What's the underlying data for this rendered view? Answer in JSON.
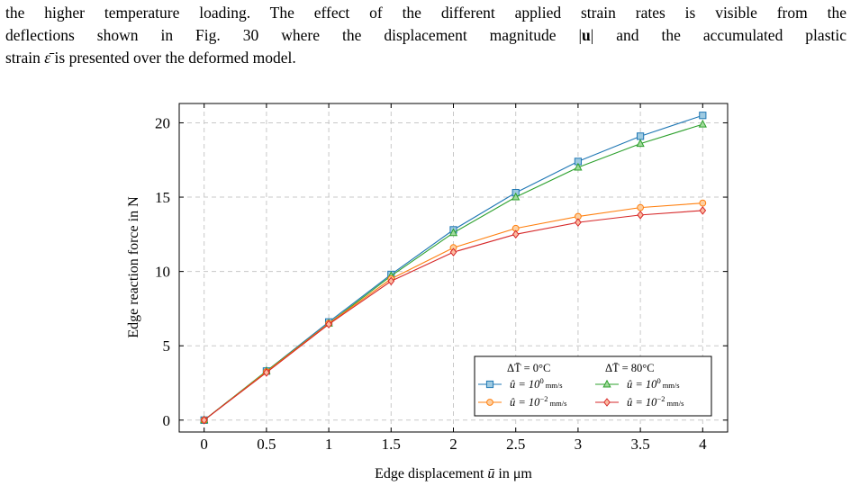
{
  "paragraph": {
    "line1": "the higher temperature loading. The effect of the different applied strain rates is visible from the",
    "line2_pre": "deflections shown in Fig. 30 where the displacement magnitude |",
    "line2_bold": "u",
    "line2_post": "| and the accumulated plastic",
    "line3_pre": "strain ",
    "line3_symbol": "ε̄",
    "line3_post": " is presented over the deformed model."
  },
  "figure": {
    "xlabel_pre": "Edge displacement ",
    "xlabel_var": "ū",
    "xlabel_post": " in μm",
    "ylabel": "Edge reaction force in N",
    "legend": {
      "header_left": "ΔT̄ = 0°C",
      "header_right": "ΔT̄ = 80°C",
      "entries": [
        {
          "label": "û = 10",
          "exp": "0",
          "unit": "mm/s"
        },
        {
          "label": "û = 10",
          "exp": "0",
          "unit": "mm/s"
        },
        {
          "label": "û = 10",
          "exp": "−2",
          "unit": "mm/s"
        },
        {
          "label": "û = 10",
          "exp": "−2",
          "unit": "mm/s"
        }
      ]
    }
  },
  "chart_data": {
    "type": "line",
    "xlabel": "Edge displacement ū in μm",
    "ylabel": "Edge reaction force in N",
    "xlim": [
      -0.2,
      4.2
    ],
    "ylim": [
      -0.8,
      21.3
    ],
    "x_ticks": [
      "0",
      "0.5",
      "1",
      "1.5",
      "2",
      "2.5",
      "3",
      "3.5",
      "4"
    ],
    "y_ticks": [
      "0",
      "5",
      "10",
      "15",
      "20"
    ],
    "x_tick_values": [
      0,
      0.5,
      1,
      1.5,
      2,
      2.5,
      3,
      3.5,
      4
    ],
    "y_tick_values": [
      0,
      5,
      10,
      15,
      20
    ],
    "grid": true,
    "legend_position": "bottom-right",
    "x": [
      0,
      0.5,
      1,
      1.5,
      2,
      2.5,
      3,
      3.5,
      4
    ],
    "series": [
      {
        "name": "ΔT̄ = 0°C, û = 10^0 mm/s",
        "color": "#1f77b4",
        "fill": "#9ecae1",
        "marker": "square",
        "values": [
          0,
          3.3,
          6.6,
          9.8,
          12.8,
          15.3,
          17.4,
          19.1,
          20.5
        ]
      },
      {
        "name": "ΔT̄ = 80°C, û = 10^0 mm/s",
        "color": "#2ca02c",
        "fill": "#a1d99b",
        "marker": "triangle",
        "values": [
          0,
          3.3,
          6.5,
          9.7,
          12.6,
          15.0,
          17.0,
          18.6,
          19.9
        ]
      },
      {
        "name": "ΔT̄ = 0°C, û = 10^-2 mm/s",
        "color": "#ff7f0e",
        "fill": "#fdd0a2",
        "marker": "circle",
        "values": [
          0,
          3.25,
          6.5,
          9.5,
          11.6,
          12.9,
          13.7,
          14.3,
          14.6
        ]
      },
      {
        "name": "ΔT̄ = 80°C, û = 10^-2 mm/s",
        "color": "#d62728",
        "fill": "#fcbba1",
        "marker": "diamond",
        "values": [
          0,
          3.2,
          6.45,
          9.35,
          11.3,
          12.5,
          13.3,
          13.8,
          14.1
        ]
      }
    ]
  }
}
